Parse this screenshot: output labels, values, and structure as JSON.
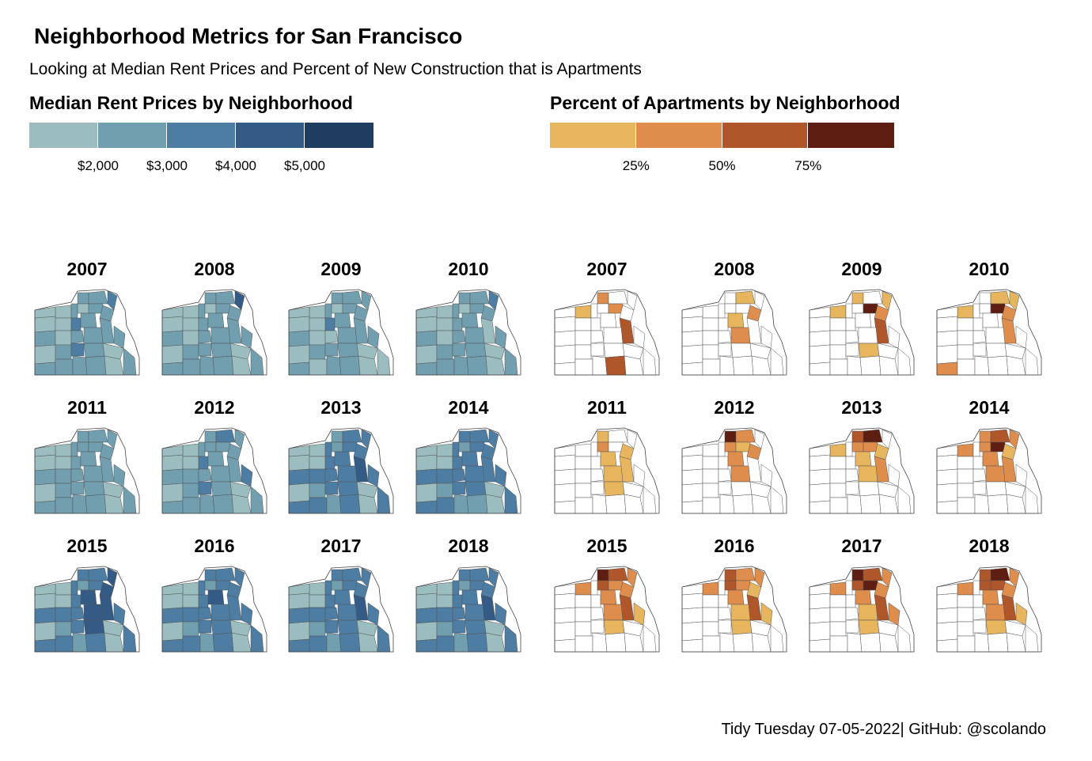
{
  "title": "Neighborhood Metrics for San Francisco",
  "subtitle": "Looking at Median Rent Prices and Percent of New Construction that is Apartments",
  "caption": "Tidy Tuesday 07-05-2022| GitHub: @scolando",
  "chart_data": [
    {
      "type": "heatmap",
      "subtype": "choropleth-small-multiples",
      "legend_title": "Median Rent Prices by Neighborhood",
      "legend_ticks": [
        "$2,000",
        "$3,000",
        "$4,000",
        "$5,000"
      ],
      "legend_colors": [
        "#9bbdc0",
        "#719faf",
        "#4d7da3",
        "#335b85",
        "#1f3d5f"
      ],
      "years": [
        "2007",
        "2008",
        "2009",
        "2010",
        "2011",
        "2012",
        "2013",
        "2014",
        "2015",
        "2016",
        "2017",
        "2018"
      ],
      "panel_classes": [
        [
          0,
          1,
          1,
          2,
          0,
          1,
          0,
          1,
          1,
          1,
          0,
          2,
          1,
          1,
          0,
          1,
          1,
          1,
          0,
          1,
          2,
          1,
          0,
          1,
          1,
          0,
          1,
          1,
          0,
          1
        ],
        [
          0,
          1,
          1,
          3,
          0,
          1,
          0,
          1,
          1,
          1,
          0,
          1,
          1,
          1,
          0,
          1,
          1,
          1,
          0,
          1,
          1,
          1,
          0,
          1,
          1,
          0,
          1,
          1,
          0,
          1
        ],
        [
          0,
          1,
          1,
          1,
          0,
          1,
          0,
          1,
          1,
          1,
          0,
          2,
          1,
          1,
          0,
          0,
          1,
          1,
          0,
          1,
          1,
          1,
          0,
          1,
          0,
          0,
          1,
          1,
          0,
          0
        ],
        [
          0,
          1,
          1,
          2,
          0,
          1,
          0,
          1,
          1,
          1,
          0,
          1,
          1,
          0,
          0,
          1,
          1,
          1,
          0,
          1,
          1,
          1,
          0,
          1,
          1,
          0,
          1,
          1,
          0,
          1
        ],
        [
          0,
          1,
          1,
          1,
          0,
          1,
          1,
          1,
          1,
          1,
          0,
          1,
          1,
          1,
          1,
          1,
          1,
          1,
          0,
          1,
          1,
          1,
          0,
          1,
          1,
          0,
          1,
          1,
          0,
          1
        ],
        [
          0,
          1,
          2,
          1,
          0,
          1,
          1,
          1,
          1,
          1,
          0,
          2,
          1,
          1,
          1,
          1,
          1,
          2,
          0,
          1,
          2,
          1,
          0,
          1,
          1,
          0,
          1,
          1,
          0,
          1
        ],
        [
          0,
          1,
          2,
          2,
          0,
          2,
          1,
          2,
          2,
          2,
          0,
          2,
          2,
          3,
          2,
          2,
          2,
          2,
          0,
          1,
          2,
          2,
          0,
          2,
          2,
          0,
          1,
          2,
          0,
          2
        ],
        [
          0,
          2,
          2,
          2,
          0,
          2,
          1,
          2,
          2,
          2,
          0,
          2,
          2,
          2,
          2,
          2,
          2,
          2,
          0,
          1,
          2,
          2,
          0,
          2,
          2,
          0,
          1,
          1,
          0,
          2
        ],
        [
          0,
          2,
          2,
          3,
          0,
          2,
          1,
          2,
          3,
          2,
          0,
          2,
          3,
          3,
          2,
          2,
          3,
          2,
          0,
          1,
          2,
          3,
          0,
          2,
          2,
          0,
          1,
          2,
          0,
          2
        ],
        [
          0,
          2,
          2,
          2,
          0,
          2,
          1,
          2,
          2,
          2,
          0,
          2,
          3,
          2,
          2,
          2,
          2,
          2,
          0,
          1,
          2,
          2,
          0,
          2,
          2,
          0,
          1,
          2,
          0,
          2
        ],
        [
          0,
          2,
          2,
          2,
          0,
          2,
          1,
          2,
          2,
          2,
          0,
          2,
          2,
          3,
          2,
          2,
          2,
          2,
          0,
          1,
          2,
          2,
          0,
          2,
          2,
          0,
          1,
          2,
          0,
          2
        ],
        [
          0,
          2,
          2,
          2,
          0,
          2,
          1,
          2,
          2,
          2,
          0,
          2,
          2,
          3,
          2,
          2,
          2,
          2,
          0,
          1,
          2,
          2,
          0,
          2,
          2,
          0,
          1,
          2,
          0,
          2
        ]
      ]
    },
    {
      "type": "heatmap",
      "subtype": "choropleth-small-multiples",
      "legend_title": "Percent of Apartments by Neighborhood",
      "legend_ticks": [
        "25%",
        "50%",
        "75%"
      ],
      "legend_colors": [
        "#e8b55f",
        "#df8d4d",
        "#b0562b",
        "#5e1e12"
      ],
      "years": [
        "2007",
        "2008",
        "2009",
        "2010",
        "2011",
        "2012",
        "2013",
        "2014",
        "2015",
        "2016",
        "2017",
        "2018"
      ],
      "panel_classes": [
        [
          -1,
          1,
          -1,
          -1,
          0,
          -1,
          -1,
          1,
          -1,
          -1,
          -1,
          -1,
          -1,
          2,
          -1,
          -1,
          -1,
          -1,
          -1,
          -1,
          -1,
          -1,
          -1,
          -1,
          -1,
          -1,
          -1,
          2,
          -1,
          -1
        ],
        [
          -1,
          -1,
          0,
          -1,
          -1,
          -1,
          -1,
          -1,
          1,
          -1,
          -1,
          -1,
          0,
          -1,
          -1,
          -1,
          1,
          -1,
          -1,
          -1,
          -1,
          -1,
          -1,
          -1,
          -1,
          -1,
          -1,
          -1,
          -1,
          -1
        ],
        [
          -1,
          0,
          -1,
          0,
          0,
          -1,
          -1,
          3,
          1,
          -1,
          -1,
          -1,
          -1,
          2,
          -1,
          -1,
          -1,
          -1,
          -1,
          -1,
          -1,
          0,
          -1,
          -1,
          -1,
          -1,
          -1,
          -1,
          -1,
          -1
        ],
        [
          -1,
          -1,
          0,
          0,
          0,
          -1,
          -1,
          3,
          1,
          -1,
          -1,
          -1,
          -1,
          1,
          -1,
          -1,
          -1,
          -1,
          -1,
          -1,
          -1,
          -1,
          -1,
          1,
          -1,
          -1,
          -1,
          -1,
          -1,
          -1
        ],
        [
          -1,
          0,
          -1,
          -1,
          -1,
          -1,
          1,
          -1,
          0,
          -1,
          -1,
          -1,
          0,
          0,
          -1,
          -1,
          0,
          -1,
          -1,
          -1,
          -1,
          0,
          -1,
          -1,
          -1,
          -1,
          -1,
          -1,
          -1,
          -1
        ],
        [
          -1,
          3,
          1,
          -1,
          -1,
          -1,
          1,
          0,
          1,
          -1,
          -1,
          -1,
          1,
          -1,
          -1,
          -1,
          1,
          -1,
          -1,
          -1,
          -1,
          -1,
          -1,
          -1,
          -1,
          -1,
          -1,
          -1,
          -1,
          -1
        ],
        [
          -1,
          2,
          3,
          -1,
          0,
          -1,
          1,
          1,
          0,
          -1,
          -1,
          -1,
          0,
          1,
          -1,
          -1,
          0,
          -1,
          -1,
          -1,
          -1,
          -1,
          -1,
          -1,
          -1,
          -1,
          -1,
          -1,
          -1,
          -1
        ],
        [
          -1,
          1,
          2,
          1,
          1,
          -1,
          1,
          3,
          0,
          -1,
          -1,
          -1,
          1,
          1,
          -1,
          -1,
          1,
          -1,
          -1,
          -1,
          -1,
          -1,
          -1,
          -1,
          -1,
          -1,
          -1,
          -1,
          -1,
          -1
        ],
        [
          -1,
          3,
          2,
          1,
          1,
          -1,
          2,
          1,
          1,
          -1,
          -1,
          -1,
          1,
          2,
          -1,
          -1,
          1,
          0,
          -1,
          -1,
          -1,
          0,
          -1,
          -1,
          -1,
          -1,
          -1,
          -1,
          -1,
          -1
        ],
        [
          -1,
          2,
          1,
          1,
          1,
          -1,
          2,
          1,
          0,
          -1,
          -1,
          -1,
          1,
          2,
          -1,
          -1,
          0,
          0,
          -1,
          -1,
          -1,
          0,
          -1,
          -1,
          -1,
          -1,
          -1,
          -1,
          -1,
          -1
        ],
        [
          -1,
          3,
          2,
          1,
          1,
          -1,
          2,
          3,
          1,
          -1,
          -1,
          -1,
          1,
          2,
          -1,
          -1,
          0,
          1,
          -1,
          -1,
          -1,
          0,
          -1,
          -1,
          -1,
          -1,
          -1,
          -1,
          -1,
          -1
        ],
        [
          -1,
          2,
          3,
          1,
          1,
          -1,
          2,
          2,
          1,
          -1,
          -1,
          -1,
          1,
          2,
          -1,
          -1,
          1,
          0,
          -1,
          -1,
          -1,
          0,
          -1,
          -1,
          -1,
          -1,
          -1,
          -1,
          -1,
          -1
        ]
      ]
    }
  ]
}
